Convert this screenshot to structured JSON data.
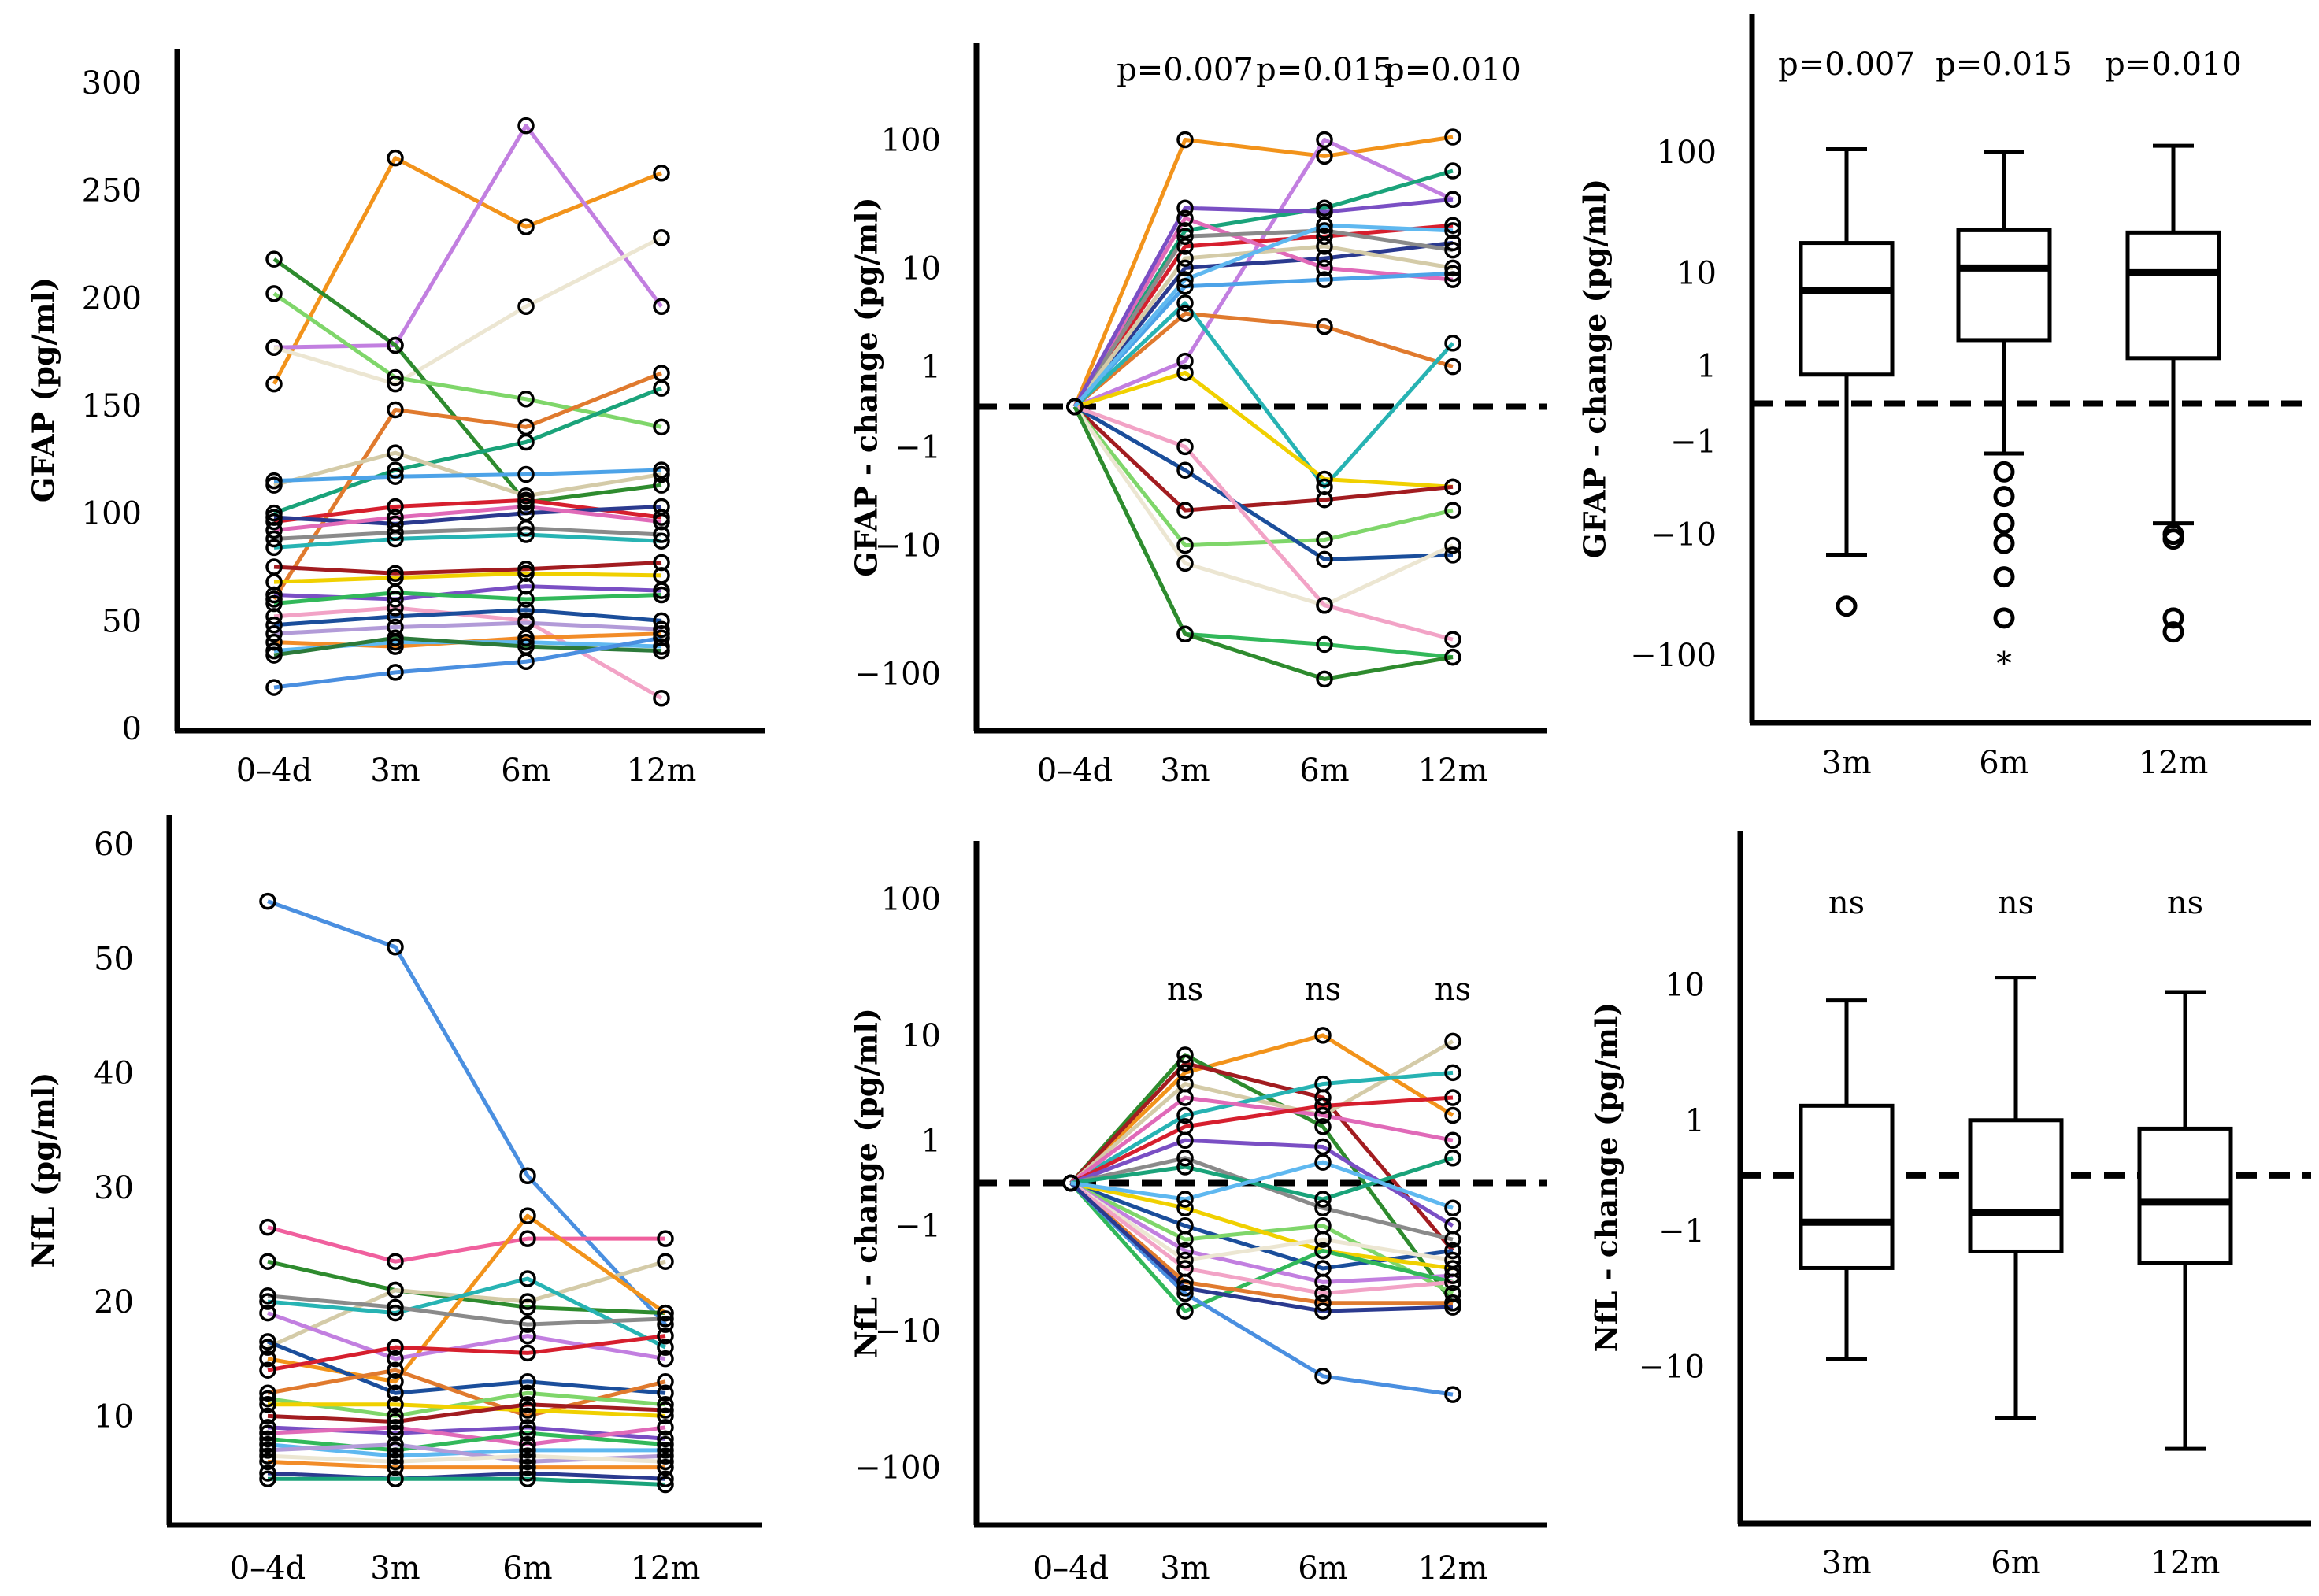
{
  "chart_data": [
    {
      "id": "gfap-abs",
      "type": "line",
      "ylabel": "GFAP (pg/ml)",
      "yscale": "linear",
      "ylim": [
        0,
        300
      ],
      "yticks": [
        "0",
        "50",
        "100",
        "150",
        "200",
        "250",
        "300"
      ],
      "categories": [
        "0–4d",
        "3m",
        "6m",
        "12m"
      ],
      "annotations": [],
      "series": [
        {
          "color": "#f2931b",
          "values": [
            160,
            265,
            233,
            258
          ]
        },
        {
          "color": "#c27fe0",
          "values": [
            177,
            178,
            280,
            196
          ]
        },
        {
          "color": "#ece6d2",
          "values": [
            177,
            160,
            196,
            228
          ]
        },
        {
          "color": "#2e8b2e",
          "values": [
            218,
            178,
            105,
            113
          ]
        },
        {
          "color": "#7fd66a",
          "values": [
            202,
            163,
            153,
            140
          ]
        },
        {
          "color": "#1aa37a",
          "values": [
            100,
            120,
            133,
            158
          ]
        },
        {
          "color": "#e07a2e",
          "values": [
            60,
            148,
            140,
            165
          ]
        },
        {
          "color": "#d4cba8",
          "values": [
            113,
            128,
            108,
            118
          ]
        },
        {
          "color": "#4da3e8",
          "values": [
            115,
            117,
            118,
            120
          ]
        },
        {
          "color": "#d61f2e",
          "values": [
            96,
            103,
            106,
            98
          ]
        },
        {
          "color": "#2b3a8f",
          "values": [
            98,
            95,
            100,
            103
          ]
        },
        {
          "color": "#e06ab8",
          "values": [
            92,
            98,
            103,
            96
          ]
        },
        {
          "color": "#8a8a8a",
          "values": [
            88,
            91,
            93,
            90
          ]
        },
        {
          "color": "#27b3b3",
          "values": [
            84,
            88,
            90,
            87
          ]
        },
        {
          "color": "#a21c20",
          "values": [
            75,
            72,
            74,
            77
          ]
        },
        {
          "color": "#f0d000",
          "values": [
            68,
            70,
            72,
            71
          ]
        },
        {
          "color": "#7a4fc4",
          "values": [
            62,
            60,
            66,
            64
          ]
        },
        {
          "color": "#32b85a",
          "values": [
            58,
            63,
            60,
            62
          ]
        },
        {
          "color": "#f2a3c6",
          "values": [
            52,
            56,
            50,
            14
          ]
        },
        {
          "color": "#1b4e9b",
          "values": [
            48,
            52,
            55,
            50
          ]
        },
        {
          "color": "#b29bd8",
          "values": [
            44,
            47,
            49,
            46
          ]
        },
        {
          "color": "#f28c28",
          "values": [
            40,
            38,
            42,
            44
          ]
        },
        {
          "color": "#5fb8f0",
          "values": [
            36,
            40,
            40,
            38
          ]
        },
        {
          "color": "#2c7a3a",
          "values": [
            34,
            42,
            38,
            36
          ]
        },
        {
          "color": "#4a8fe0",
          "values": [
            19,
            26,
            31,
            42
          ]
        }
      ]
    },
    {
      "id": "gfap-change",
      "type": "line",
      "ylabel": "GFAP - change (pg/ml)",
      "yscale": "symlog",
      "ylim": [
        -150,
        150
      ],
      "yticks": [
        "100",
        "10",
        "1",
        "−1",
        "−10",
        "−100"
      ],
      "categories": [
        "0–4d",
        "3m",
        "6m",
        "12m"
      ],
      "annotations": [
        "p=0.007",
        "p=0.015",
        "p=0.010"
      ],
      "series": [
        {
          "color": "#f2931b",
          "values": [
            0,
            100,
            75,
            105
          ]
        },
        {
          "color": "#c27fe0",
          "values": [
            0,
            1.2,
            100,
            35
          ]
        },
        {
          "color": "#1aa37a",
          "values": [
            0,
            20,
            30,
            58
          ]
        },
        {
          "color": "#d61f2e",
          "values": [
            0,
            15,
            18,
            22
          ]
        },
        {
          "color": "#2b3a8f",
          "values": [
            0,
            10,
            12,
            16
          ]
        },
        {
          "color": "#e06ab8",
          "values": [
            0,
            25,
            10,
            8
          ]
        },
        {
          "color": "#8a8a8a",
          "values": [
            0,
            18,
            20,
            14
          ]
        },
        {
          "color": "#d4cba8",
          "values": [
            0,
            12,
            15,
            10
          ]
        },
        {
          "color": "#4da3e8",
          "values": [
            0,
            7,
            8,
            9
          ]
        },
        {
          "color": "#e07a2e",
          "values": [
            0,
            4,
            3,
            1
          ]
        },
        {
          "color": "#27b3b3",
          "values": [
            0,
            5,
            -3,
            2
          ]
        },
        {
          "color": "#f0d000",
          "values": [
            0,
            0.8,
            -2.5,
            -3
          ]
        },
        {
          "color": "#a21c20",
          "values": [
            0,
            -5,
            -4,
            -3
          ]
        },
        {
          "color": "#7fd66a",
          "values": [
            0,
            -10,
            -9,
            -5
          ]
        },
        {
          "color": "#1b4e9b",
          "values": [
            0,
            -2,
            -13,
            -12
          ]
        },
        {
          "color": "#ece6d2",
          "values": [
            0,
            -14,
            -30,
            -10
          ]
        },
        {
          "color": "#f2a3c6",
          "values": [
            0,
            -1,
            -30,
            -55
          ]
        },
        {
          "color": "#32b85a",
          "values": [
            0,
            -50,
            -60,
            -75
          ]
        },
        {
          "color": "#2e8b2e",
          "values": [
            0,
            -50,
            -110,
            -75
          ]
        },
        {
          "color": "#7a4fc4",
          "values": [
            0,
            30,
            28,
            35
          ]
        },
        {
          "color": "#5fb8f0",
          "values": [
            0,
            8,
            22,
            20
          ]
        }
      ]
    },
    {
      "id": "gfap-box",
      "type": "box",
      "ylabel": "GFAP - change (pg/ml)",
      "yscale": "symlog",
      "ylim": [
        -150,
        150
      ],
      "yticks": [
        "100",
        "10",
        "1",
        "−1",
        "−10",
        "−100"
      ],
      "categories": [
        "3m",
        "6m",
        "12m"
      ],
      "annotations": [
        "p=0.007",
        "p=0.015",
        "p=0.010"
      ],
      "boxes": [
        {
          "min": -15,
          "q1": 0.7,
          "median": 7,
          "q3": 18,
          "max": 105,
          "outliers": [
            -40
          ],
          "extremes": []
        },
        {
          "min": -1.5,
          "q1": 2.2,
          "median": 11,
          "q3": 23,
          "max": 100,
          "outliers": [
            -2.5,
            -4.5,
            -8,
            -12,
            -23,
            -50
          ],
          "extremes": [
            -92
          ]
        },
        {
          "min": -8,
          "q1": 1.3,
          "median": 10,
          "q3": 22,
          "max": 112,
          "outliers": [
            -10,
            -11,
            -50,
            -65
          ],
          "extremes": []
        }
      ]
    },
    {
      "id": "nfl-abs",
      "type": "line",
      "ylabel": "NfL (pg/ml)",
      "yscale": "linear",
      "ylim": [
        3,
        60
      ],
      "yticks": [
        "10",
        "20",
        "30",
        "40",
        "50",
        "60"
      ],
      "categories": [
        "0–4d",
        "3m",
        "6m",
        "12m"
      ],
      "annotations": [],
      "series": [
        {
          "color": "#4a8fe0",
          "values": [
            55,
            51,
            31,
            18
          ]
        },
        {
          "color": "#f0609e",
          "values": [
            26.5,
            23.5,
            25.5,
            25.5
          ]
        },
        {
          "color": "#2e8b2e",
          "values": [
            23.5,
            21,
            19.5,
            19
          ]
        },
        {
          "color": "#d4cba8",
          "values": [
            16,
            21,
            20,
            23.5
          ]
        },
        {
          "color": "#f2931b",
          "values": [
            15,
            13,
            27.5,
            19
          ]
        },
        {
          "color": "#27b3b3",
          "values": [
            20,
            19,
            22,
            16
          ]
        },
        {
          "color": "#8a8a8a",
          "values": [
            20.5,
            19.5,
            18,
            18.5
          ]
        },
        {
          "color": "#c27fe0",
          "values": [
            19,
            15,
            17,
            15
          ]
        },
        {
          "color": "#1b4e9b",
          "values": [
            16.5,
            12,
            13,
            12
          ]
        },
        {
          "color": "#d61f2e",
          "values": [
            14,
            16,
            15.5,
            17
          ]
        },
        {
          "color": "#e07a2e",
          "values": [
            12,
            14,
            10,
            13
          ]
        },
        {
          "color": "#7fd66a",
          "values": [
            11.5,
            10,
            12,
            11
          ]
        },
        {
          "color": "#f0d000",
          "values": [
            11,
            11,
            10.5,
            10
          ]
        },
        {
          "color": "#a21c20",
          "values": [
            10,
            9.5,
            11,
            10.5
          ]
        },
        {
          "color": "#7a4fc4",
          "values": [
            9,
            8.5,
            9,
            8
          ]
        },
        {
          "color": "#e06ab8",
          "values": [
            8.5,
            9,
            7.5,
            9
          ]
        },
        {
          "color": "#32b85a",
          "values": [
            8,
            7,
            8.5,
            7.5
          ]
        },
        {
          "color": "#5fb8f0",
          "values": [
            7.5,
            6.5,
            7,
            7
          ]
        },
        {
          "color": "#b29bd8",
          "values": [
            7,
            7.5,
            6,
            6.5
          ]
        },
        {
          "color": "#ece6d2",
          "values": [
            6.5,
            6,
            6.5,
            6
          ]
        },
        {
          "color": "#f28c28",
          "values": [
            6,
            5.5,
            5.5,
            5.5
          ]
        },
        {
          "color": "#2b3a8f",
          "values": [
            5,
            4.5,
            5,
            4.5
          ]
        },
        {
          "color": "#1aa37a",
          "values": [
            4.5,
            4.5,
            4.5,
            4
          ]
        }
      ]
    },
    {
      "id": "nfl-change",
      "type": "line",
      "ylabel": "NfL - change (pg/ml)",
      "yscale": "symlog",
      "ylim": [
        -150,
        150
      ],
      "yticks": [
        "100",
        "10",
        "1",
        "−1",
        "−10",
        "−100"
      ],
      "categories": [
        "0–4d",
        "3m",
        "6m",
        "12m"
      ],
      "annotations": [
        "ns",
        "ns",
        "ns"
      ],
      "series": [
        {
          "color": "#f2931b",
          "values": [
            0,
            5,
            10,
            2
          ]
        },
        {
          "color": "#2e8b2e",
          "values": [
            0,
            7,
            1.5,
            -6
          ]
        },
        {
          "color": "#a21c20",
          "values": [
            0,
            6,
            3,
            -2
          ]
        },
        {
          "color": "#d4cba8",
          "values": [
            0,
            4,
            2,
            9
          ]
        },
        {
          "color": "#27b3b3",
          "values": [
            0,
            2,
            4,
            5
          ]
        },
        {
          "color": "#e06ab8",
          "values": [
            0,
            3,
            2,
            1
          ]
        },
        {
          "color": "#d61f2e",
          "values": [
            0,
            1.5,
            2.5,
            3
          ]
        },
        {
          "color": "#7a4fc4",
          "values": [
            0,
            1,
            0.8,
            -1
          ]
        },
        {
          "color": "#8a8a8a",
          "values": [
            0,
            0.5,
            -0.5,
            -1.5
          ]
        },
        {
          "color": "#1b4e9b",
          "values": [
            0,
            -1,
            -3,
            -2
          ]
        },
        {
          "color": "#7fd66a",
          "values": [
            0,
            -1.5,
            -1,
            -5
          ]
        },
        {
          "color": "#f0d000",
          "values": [
            0,
            -0.5,
            -2,
            -3
          ]
        },
        {
          "color": "#c27fe0",
          "values": [
            0,
            -2,
            -4,
            -3.5
          ]
        },
        {
          "color": "#ece6d2",
          "values": [
            0,
            -2.5,
            -1.5,
            -2.5
          ]
        },
        {
          "color": "#32b85a",
          "values": [
            0,
            -7,
            -2,
            -4
          ]
        },
        {
          "color": "#e07a2e",
          "values": [
            0,
            -4,
            -6,
            -6
          ]
        },
        {
          "color": "#f2a3c6",
          "values": [
            0,
            -3,
            -5,
            -4
          ]
        },
        {
          "color": "#4a8fe0",
          "values": [
            0,
            -5,
            -22,
            -30
          ]
        },
        {
          "color": "#2b3a8f",
          "values": [
            0,
            -4.5,
            -7,
            -6.5
          ]
        },
        {
          "color": "#1aa37a",
          "values": [
            0,
            0.3,
            -0.3,
            0.5
          ]
        },
        {
          "color": "#5fb8f0",
          "values": [
            0,
            -0.3,
            0.4,
            -0.5
          ]
        }
      ]
    },
    {
      "id": "nfl-box",
      "type": "box",
      "ylabel": "NfL - change (pg/ml)",
      "yscale": "symlog",
      "ylim": [
        -45,
        20
      ],
      "yticks": [
        "10",
        "1",
        "−1",
        "−10"
      ],
      "categories": [
        "3m",
        "6m",
        "12m"
      ],
      "annotations": [
        "ns",
        "ns",
        "ns"
      ],
      "boxes": [
        {
          "min": -9,
          "q1": -2.2,
          "median": -0.8,
          "q3": 1.4,
          "max": 8,
          "outliers": [],
          "extremes": []
        },
        {
          "min": -20,
          "q1": -1.6,
          "median": -0.6,
          "q3": 1.0,
          "max": 11,
          "outliers": [],
          "extremes": []
        },
        {
          "min": -30,
          "q1": -2.0,
          "median": -0.4,
          "q3": 0.8,
          "max": 9,
          "outliers": [],
          "extremes": []
        }
      ]
    }
  ]
}
